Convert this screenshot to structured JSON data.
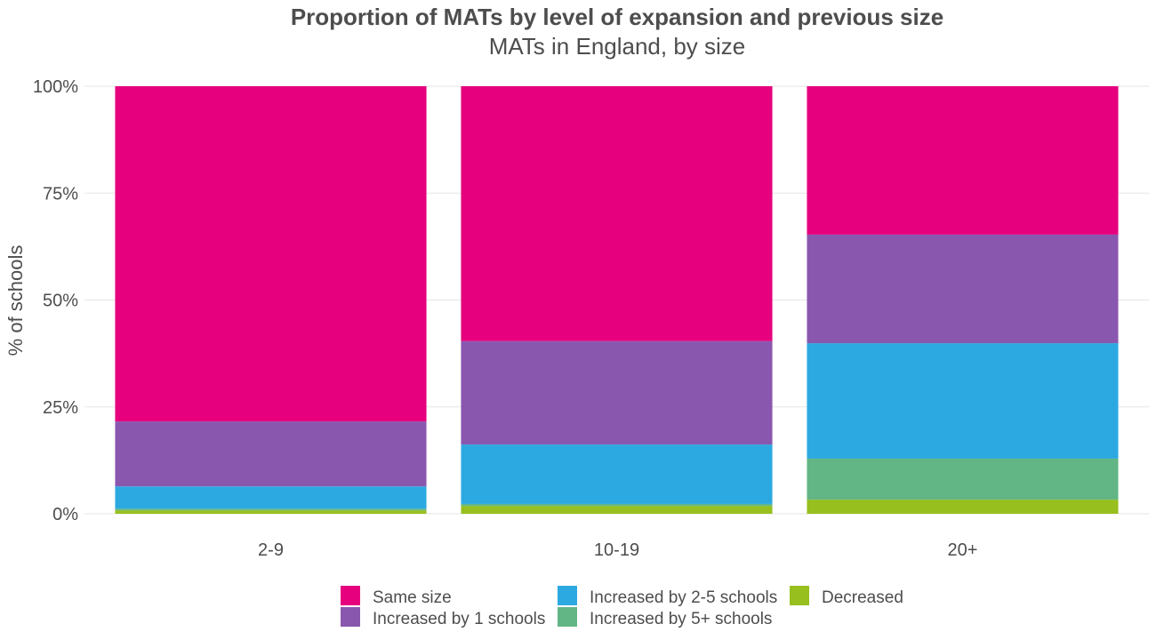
{
  "chart_data": {
    "type": "bar",
    "stacked": true,
    "percent": true,
    "title": "Proportion of MATs by level of expansion and previous size",
    "subtitle": "MATs in England, by size",
    "xlabel": "",
    "ylabel": "% of schools",
    "ylim": [
      0,
      100
    ],
    "yticks": [
      0,
      25,
      50,
      75,
      100
    ],
    "ytick_labels": [
      "0%",
      "25%",
      "50%",
      "75%",
      "100%"
    ],
    "categories": [
      "2-9",
      "10-19",
      "20+"
    ],
    "series": [
      {
        "name": "Decreased",
        "color": "#97bf1e",
        "values": [
          0.8,
          1.8,
          3.3
        ]
      },
      {
        "name": "Increased by 5+ schools",
        "color": "#62b685",
        "values": [
          0.4,
          0.5,
          9.6
        ]
      },
      {
        "name": "Increased by 2-5 schools",
        "color": "#2da9e1",
        "values": [
          5.2,
          13.9,
          27.0
        ]
      },
      {
        "name": "Increased by 1 schools",
        "color": "#8a57af",
        "values": [
          15.2,
          24.2,
          25.4
        ]
      },
      {
        "name": "Same size",
        "color": "#e6007e",
        "values": [
          78.4,
          59.6,
          34.7
        ]
      }
    ],
    "grid": true,
    "legend_position": "bottom",
    "legend_order": [
      "Same size",
      "Increased by 1 schools",
      "Increased by 2-5 schools",
      "Increased by 5+ schools",
      "Decreased"
    ]
  }
}
